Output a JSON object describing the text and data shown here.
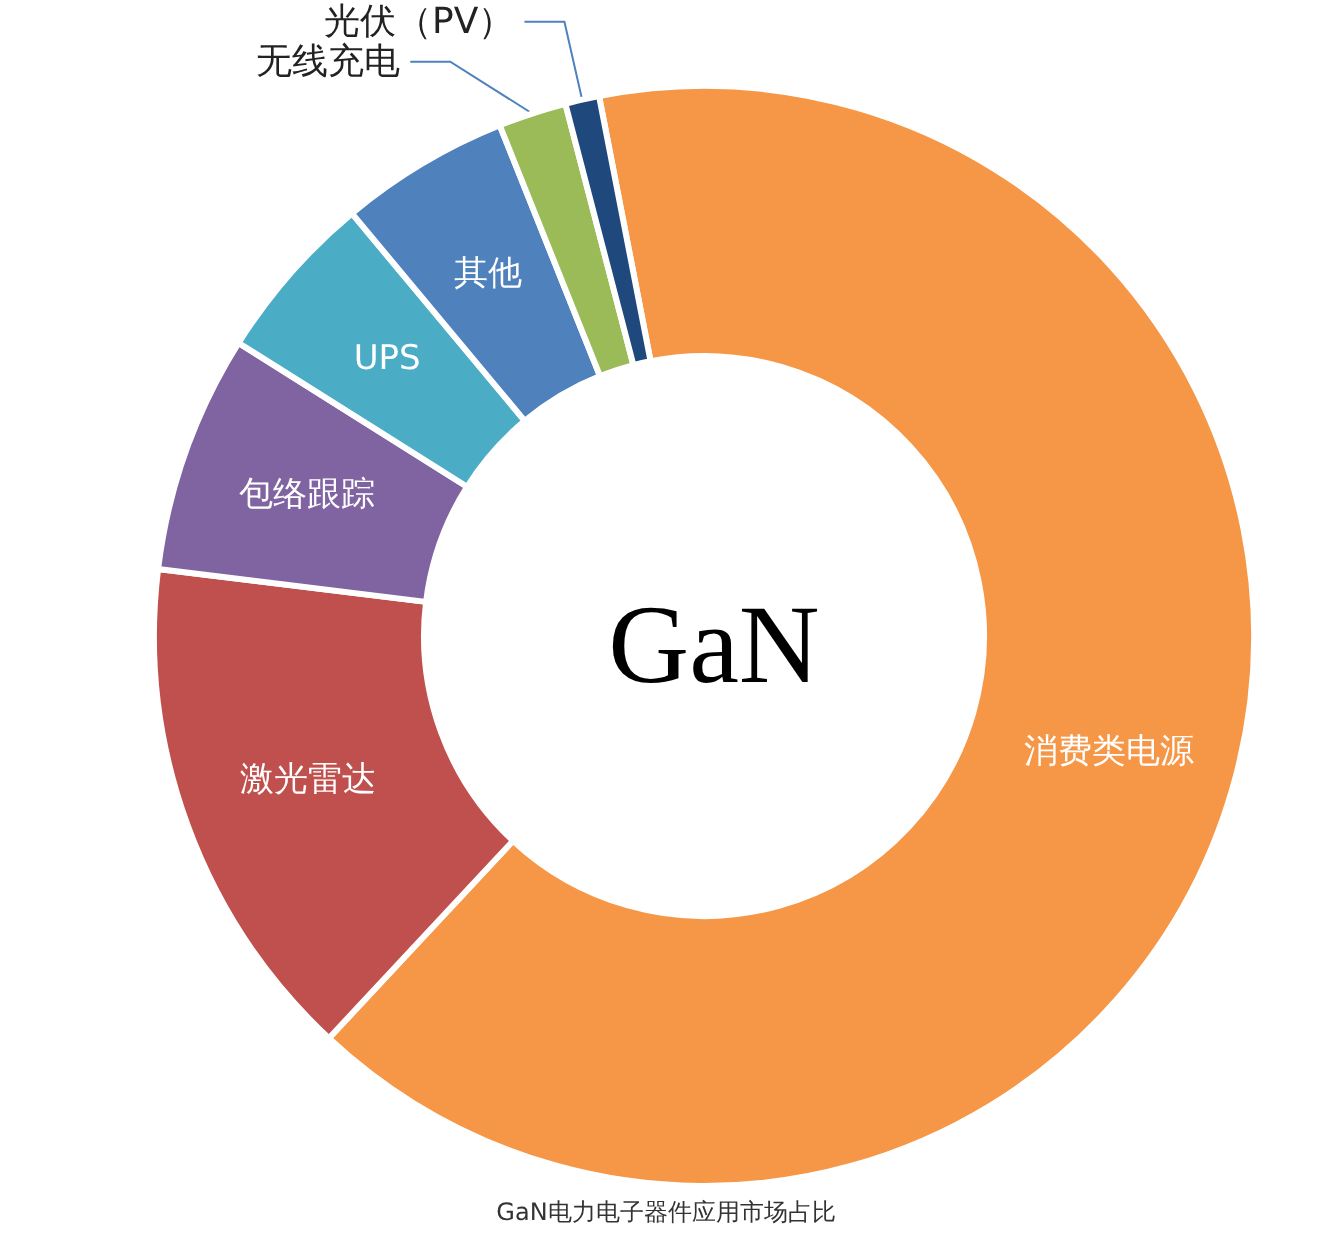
{
  "chart_data": {
    "type": "donut",
    "title": "GaN",
    "categories": [
      "消费类电源",
      "激光雷达",
      "包络跟踪",
      "UPS",
      "其他",
      "无线充电",
      "光伏（PV）"
    ],
    "values": [
      65,
      15,
      7,
      5,
      5,
      2,
      1
    ],
    "colors": [
      "#f59746",
      "#c0504d",
      "#8064a2",
      "#4bacc6",
      "#4f81bd",
      "#9bbb59",
      "#1f497d"
    ],
    "legend": false,
    "annotations": [
      "GaN电力电子器件应用市场占比"
    ]
  }
}
